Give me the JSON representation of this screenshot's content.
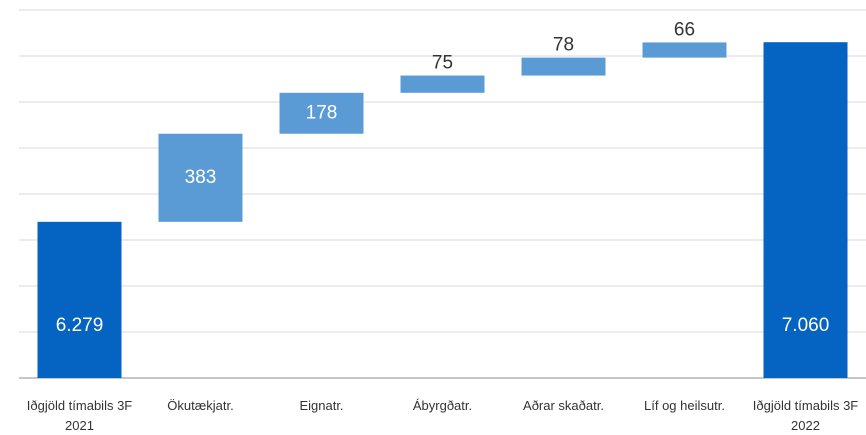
{
  "chart_data": {
    "type": "waterfall",
    "categories": [
      "Iðgjöld tímabils 3F 2021",
      "Ökutækjatr.",
      "Eignatr.",
      "Ábyrgðatr.",
      "Aðrar skaðatr.",
      "Líf og heilsutr.",
      "Iðgjöld tímabils 3F 2022"
    ],
    "values": [
      6279,
      383,
      178,
      75,
      78,
      66,
      7060
    ],
    "value_labels": [
      "6.279",
      "383",
      "178",
      "75",
      "78",
      "66",
      "7.060"
    ],
    "totals": [
      true,
      false,
      false,
      false,
      false,
      false,
      true
    ],
    "colors": [
      "#0563c1",
      "#5b9bd5",
      "#5b9bd5",
      "#5b9bd5",
      "#5b9bd5",
      "#5b9bd5",
      "#0563c1"
    ],
    "ylim": [
      5600,
      7200
    ],
    "yticks": [
      5600,
      5800,
      6000,
      6200,
      6400,
      6600,
      6800,
      7000,
      7200
    ],
    "grid": true
  }
}
